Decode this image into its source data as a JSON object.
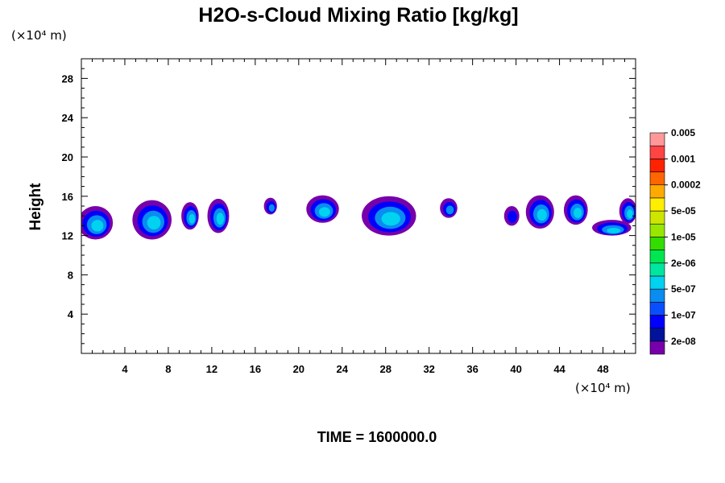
{
  "chart_data": {
    "type": "heatmap",
    "title": "H2O-s-Cloud Mixing Ratio [kg/kg]",
    "ylabel": "Height",
    "x_unit": "(×10⁴ m)",
    "y_unit": "(×10⁴ m)",
    "xlim": [
      0,
      51
    ],
    "ylim": [
      0,
      30
    ],
    "x_ticks": [
      4,
      8,
      12,
      16,
      20,
      24,
      28,
      32,
      36,
      40,
      44,
      48
    ],
    "y_ticks": [
      4,
      8,
      12,
      16,
      20,
      24,
      28
    ],
    "time_label": "TIME = 1600000.0",
    "colorbar": {
      "colors": [
        "#7700aa",
        "#00139a",
        "#0000ff",
        "#0a4fff",
        "#0a8cf0",
        "#00d2f0",
        "#00e6a0",
        "#00e650",
        "#33dd00",
        "#99e600",
        "#cce600",
        "#ffee00",
        "#ffaa00",
        "#ff6600",
        "#ff2200",
        "#ff4444",
        "#ff9999"
      ],
      "tick_labels": [
        "2e-08",
        "1e-07",
        "5e-07",
        "2e-06",
        "1e-05",
        "5e-05",
        "0.0002",
        "0.001",
        "0.005"
      ]
    },
    "cloud_cells": [
      {
        "x": 1.3,
        "y": 13.3,
        "w": 3.2,
        "h": 3.4,
        "peak": 0.62
      },
      {
        "x": 6.5,
        "y": 13.6,
        "w": 3.6,
        "h": 4.0,
        "peak": 0.6
      },
      {
        "x": 10.0,
        "y": 14.0,
        "w": 1.6,
        "h": 2.8,
        "peak": 0.55
      },
      {
        "x": 12.6,
        "y": 14.0,
        "w": 2.0,
        "h": 3.5,
        "peak": 0.62
      },
      {
        "x": 17.4,
        "y": 15.0,
        "w": 1.2,
        "h": 1.7,
        "peak": 0.4
      },
      {
        "x": 22.2,
        "y": 14.7,
        "w": 3.0,
        "h": 2.8,
        "peak": 0.55
      },
      {
        "x": 28.3,
        "y": 14.0,
        "w": 5.0,
        "h": 4.0,
        "peak": 0.62
      },
      {
        "x": 33.8,
        "y": 14.8,
        "w": 1.6,
        "h": 2.0,
        "peak": 0.45
      },
      {
        "x": 39.6,
        "y": 14.0,
        "w": 1.4,
        "h": 2.0,
        "peak": 0.35
      },
      {
        "x": 42.2,
        "y": 14.4,
        "w": 2.6,
        "h": 3.4,
        "peak": 0.55
      },
      {
        "x": 45.5,
        "y": 14.6,
        "w": 2.2,
        "h": 3.0,
        "peak": 0.5
      },
      {
        "x": 48.8,
        "y": 12.8,
        "w": 3.6,
        "h": 1.6,
        "peak": 0.62
      },
      {
        "x": 50.3,
        "y": 14.5,
        "w": 1.6,
        "h": 2.6,
        "peak": 0.5
      }
    ]
  }
}
